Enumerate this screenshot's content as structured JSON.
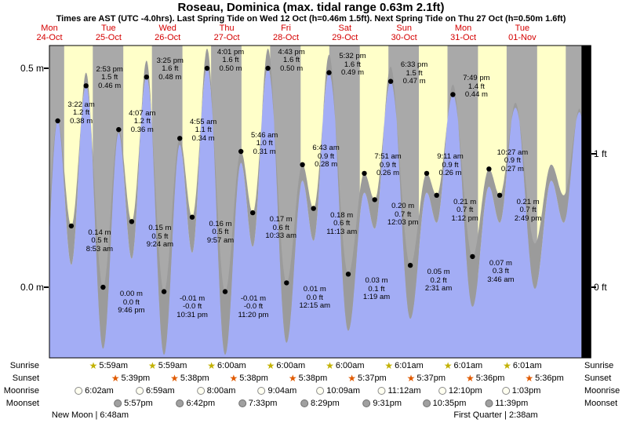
{
  "title": "Roseau, Dominica (max. tidal range 0.63m 2.1ft)",
  "subtitle": "Times are AST (UTC -4.0hrs). Last Spring Tide on Wed 12 Oct (h=0.46m 1.5ft). Next Spring Tide on Thu 27 Oct (h=0.50m 1.6ft)",
  "axis": {
    "left": [
      {
        "label": "0.5 m",
        "value_m": 0.5
      },
      {
        "label": "0.0 m",
        "value_m": 0.0
      }
    ],
    "right": [
      {
        "label": "1 ft",
        "value_ft": 1
      },
      {
        "label": "0 ft",
        "value_ft": 0
      }
    ]
  },
  "days": [
    {
      "dow": "Mon",
      "date": "24-Oct"
    },
    {
      "dow": "Tue",
      "date": "25-Oct"
    },
    {
      "dow": "Wed",
      "date": "26-Oct"
    },
    {
      "dow": "Thu",
      "date": "27-Oct"
    },
    {
      "dow": "Fri",
      "date": "28-Oct"
    },
    {
      "dow": "Sat",
      "date": "29-Oct"
    },
    {
      "dow": "Sun",
      "date": "30-Oct"
    },
    {
      "dow": "Mon",
      "date": "31-Oct"
    },
    {
      "dow": "Tue",
      "date": "01-Nov"
    }
  ],
  "chart_data": {
    "type": "area",
    "title": "Tide height curve for Roseau, Dominica",
    "x_axis": "Time, Mon 24-Oct 00:00 through Tue 01-Nov 24:00 (AST)",
    "units": "m",
    "ylim_m": [
      -0.16,
      0.55
    ],
    "y_axis_m_ticks": [
      0.0,
      0.5
    ],
    "y_axis_ft_ticks": [
      0,
      1
    ],
    "day_band_hours": [
      6.0,
      17.63
    ],
    "tide_events": [
      {
        "day": 0,
        "time": "3:22 am",
        "hour": 3.3667,
        "height_m": 0.38,
        "kind": "high",
        "lines": [
          "3:22 am",
          "1.2 ft",
          "0.38 m"
        ]
      },
      {
        "day": 0,
        "time": "8:53 am",
        "hour": 8.8833,
        "height_m": 0.14,
        "kind": "low",
        "lines": [
          "0.14 m",
          "0.5 ft",
          "8:53 am"
        ]
      },
      {
        "day": 0,
        "time": "2:53 pm",
        "hour": 14.8833,
        "height_m": 0.46,
        "kind": "high",
        "lines": [
          "2:53 pm",
          "1.5 ft",
          "0.46 m"
        ]
      },
      {
        "day": 0,
        "time": "9:46 pm",
        "hour": 21.7667,
        "height_m": 0.0,
        "kind": "low",
        "lines": [
          "0.00 m",
          "0.0 ft",
          "9:46 pm"
        ]
      },
      {
        "day": 1,
        "time": "4:07 am",
        "hour": 4.1167,
        "height_m": 0.36,
        "kind": "high",
        "lines": [
          "4:07 am",
          "1.2 ft",
          "0.36 m"
        ]
      },
      {
        "day": 1,
        "time": "9:24 am",
        "hour": 9.4,
        "height_m": 0.15,
        "kind": "low",
        "lines": [
          "0.15 m",
          "0.5 ft",
          "9:24 am"
        ]
      },
      {
        "day": 1,
        "time": "3:25 pm",
        "hour": 15.4167,
        "height_m": 0.48,
        "kind": "high",
        "lines": [
          "3:25 pm",
          "1.6 ft",
          "0.48 m"
        ]
      },
      {
        "day": 1,
        "time": "10:31 pm",
        "hour": 22.5167,
        "height_m": -0.01,
        "kind": "low",
        "lines": [
          "-0.01 m",
          "-0.0 ft",
          "10:31 pm"
        ]
      },
      {
        "day": 2,
        "time": "4:55 am",
        "hour": 4.9167,
        "height_m": 0.34,
        "kind": "high",
        "lines": [
          "4:55 am",
          "1.1 ft",
          "0.34 m"
        ]
      },
      {
        "day": 2,
        "time": "9:57 am",
        "hour": 9.95,
        "height_m": 0.16,
        "kind": "low",
        "lines": [
          "0.16 m",
          "0.5 ft",
          "9:57 am"
        ]
      },
      {
        "day": 2,
        "time": "4:01 pm",
        "hour": 16.0167,
        "height_m": 0.5,
        "kind": "high",
        "lines": [
          "4:01 pm",
          "1.6 ft",
          "0.50 m"
        ]
      },
      {
        "day": 2,
        "time": "11:20 pm",
        "hour": 23.3333,
        "height_m": -0.01,
        "kind": "low",
        "lines": [
          "-0.01 m",
          "-0.0 ft",
          "11:20 pm"
        ]
      },
      {
        "day": 3,
        "time": "5:46 am",
        "hour": 5.7667,
        "height_m": 0.31,
        "kind": "high",
        "lines": [
          "5:46 am",
          "1.0 ft",
          "0.31 m"
        ]
      },
      {
        "day": 3,
        "time": "10:33 am",
        "hour": 10.55,
        "height_m": 0.17,
        "kind": "low",
        "lines": [
          "0.17 m",
          "0.6 ft",
          "10:33 am"
        ]
      },
      {
        "day": 3,
        "time": "4:43 pm",
        "hour": 16.7167,
        "height_m": 0.5,
        "kind": "high",
        "lines": [
          "4:43 pm",
          "1.6 ft",
          "0.50 m"
        ]
      },
      {
        "day": 4,
        "time": "12:15 am",
        "hour": 0.25,
        "height_m": 0.01,
        "kind": "low",
        "lines": [
          "0.01 m",
          "0.0 ft",
          "12:15 am"
        ]
      },
      {
        "day": 4,
        "time": "6:43 am",
        "hour": 6.7167,
        "height_m": 0.28,
        "kind": "high",
        "lines": [
          "6:43 am",
          "0.9 ft",
          "0.28 m"
        ]
      },
      {
        "day": 4,
        "time": "11:13 am",
        "hour": 11.2167,
        "height_m": 0.18,
        "kind": "low",
        "lines": [
          "0.18 m",
          "0.6 ft",
          "11:13 am"
        ]
      },
      {
        "day": 4,
        "time": "5:32 pm",
        "hour": 17.5333,
        "height_m": 0.49,
        "kind": "high",
        "lines": [
          "5:32 pm",
          "1.6 ft",
          "0.49 m"
        ]
      },
      {
        "day": 5,
        "time": "1:19 am",
        "hour": 1.3167,
        "height_m": 0.03,
        "kind": "low",
        "lines": [
          "0.03 m",
          "0.1 ft",
          "1:19 am"
        ]
      },
      {
        "day": 5,
        "time": "7:51 am",
        "hour": 7.85,
        "height_m": 0.26,
        "kind": "high",
        "lines": [
          "7:51 am",
          "0.9 ft",
          "0.26 m"
        ]
      },
      {
        "day": 5,
        "time": "12:03 pm",
        "hour": 12.05,
        "height_m": 0.2,
        "kind": "low",
        "lines": [
          "0.20 m",
          "0.7 ft",
          "12:03 pm"
        ]
      },
      {
        "day": 5,
        "time": "6:33 pm",
        "hour": 18.55,
        "height_m": 0.47,
        "kind": "high",
        "lines": [
          "6:33 pm",
          "1.5 ft",
          "0.47 m"
        ]
      },
      {
        "day": 6,
        "time": "2:31 am",
        "hour": 2.5167,
        "height_m": 0.05,
        "kind": "low",
        "lines": [
          "0.05 m",
          "0.2 ft",
          "2:31 am"
        ]
      },
      {
        "day": 6,
        "time": "9:11 am",
        "hour": 9.1833,
        "height_m": 0.26,
        "kind": "high",
        "lines": [
          "9:11 am",
          "0.9 ft",
          "0.26 m"
        ]
      },
      {
        "day": 6,
        "time": "1:12 pm",
        "hour": 13.2,
        "height_m": 0.21,
        "kind": "low",
        "lines": [
          "0.21 m",
          "0.7 ft",
          "1:12 pm"
        ]
      },
      {
        "day": 6,
        "time": "7:49 pm",
        "hour": 19.8167,
        "height_m": 0.44,
        "kind": "high",
        "lines": [
          "7:49 pm",
          "1.4 ft",
          "0.44 m"
        ]
      },
      {
        "day": 7,
        "time": "3:46 am",
        "hour": 3.7667,
        "height_m": 0.07,
        "kind": "low",
        "lines": [
          "0.07 m",
          "0.3 ft",
          "3:46 am"
        ]
      },
      {
        "day": 7,
        "time": "10:27 am",
        "hour": 10.45,
        "height_m": 0.27,
        "kind": "high",
        "lines": [
          "10:27 am",
          "0.9 ft",
          "0.27 m"
        ]
      },
      {
        "day": 7,
        "time": "2:49 pm",
        "hour": 14.8167,
        "height_m": 0.21,
        "kind": "low",
        "lines": [
          "0.21 m",
          "0.7 ft",
          "2:49 pm"
        ]
      }
    ],
    "edge_events": [
      {
        "day": -1,
        "hour": 20.9,
        "height_m": 0.02
      },
      {
        "day": 7,
        "hour": 21.2,
        "height_m": 0.41
      },
      {
        "day": 8,
        "hour": 5.1,
        "height_m": 0.1
      },
      {
        "day": 8,
        "hour": 11.75,
        "height_m": 0.28
      },
      {
        "day": 8,
        "hour": 16.8,
        "height_m": 0.21
      },
      {
        "day": 8,
        "hour": 23.2,
        "height_m": 0.4
      },
      {
        "day": 9,
        "hour": 5.5,
        "height_m": 0.12
      }
    ]
  },
  "astro": {
    "phase_separator": "|",
    "rows": [
      {
        "key": "sunrise",
        "label": "Sunrise",
        "icon": "sun-star",
        "times": [
          "5:59am",
          "5:59am",
          "6:00am",
          "6:00am",
          "6:00am",
          "6:01am",
          "6:01am",
          "6:01am"
        ]
      },
      {
        "key": "sunset",
        "label": "Sunset",
        "icon": "sun-star",
        "times": [
          "5:39pm",
          "5:38pm",
          "5:38pm",
          "5:38pm",
          "5:37pm",
          "5:37pm",
          "5:36pm",
          "5:36pm"
        ]
      },
      {
        "key": "moonrise",
        "label": "Moonrise",
        "icon": "moon-circle-open",
        "times": [
          "6:02am",
          "6:59am",
          "8:00am",
          "9:04am",
          "10:09am",
          "11:12am",
          "12:10pm",
          "1:03pm"
        ]
      },
      {
        "key": "moonset",
        "label": "Moonset",
        "icon": "moon-circle-filled",
        "times": [
          "5:57pm",
          "6:42pm",
          "7:33pm",
          "8:29pm",
          "9:31pm",
          "10:35pm",
          "11:39pm"
        ]
      }
    ],
    "phases": [
      {
        "name": "New Moon",
        "time": "6:48am"
      },
      {
        "name": "First Quarter",
        "time": "2:38am"
      }
    ]
  },
  "colors": {
    "day_band": "#ffffc9",
    "night_band": "#a9a9a9",
    "no_data": "#000000",
    "tide_fill": "#a3adf5",
    "mountain_fill": "#9b9b9b",
    "date_label": "#d40000",
    "sunrise_star": "#c2b100",
    "sunset_star": "#e05a00",
    "annotation_dot": "#000000"
  }
}
